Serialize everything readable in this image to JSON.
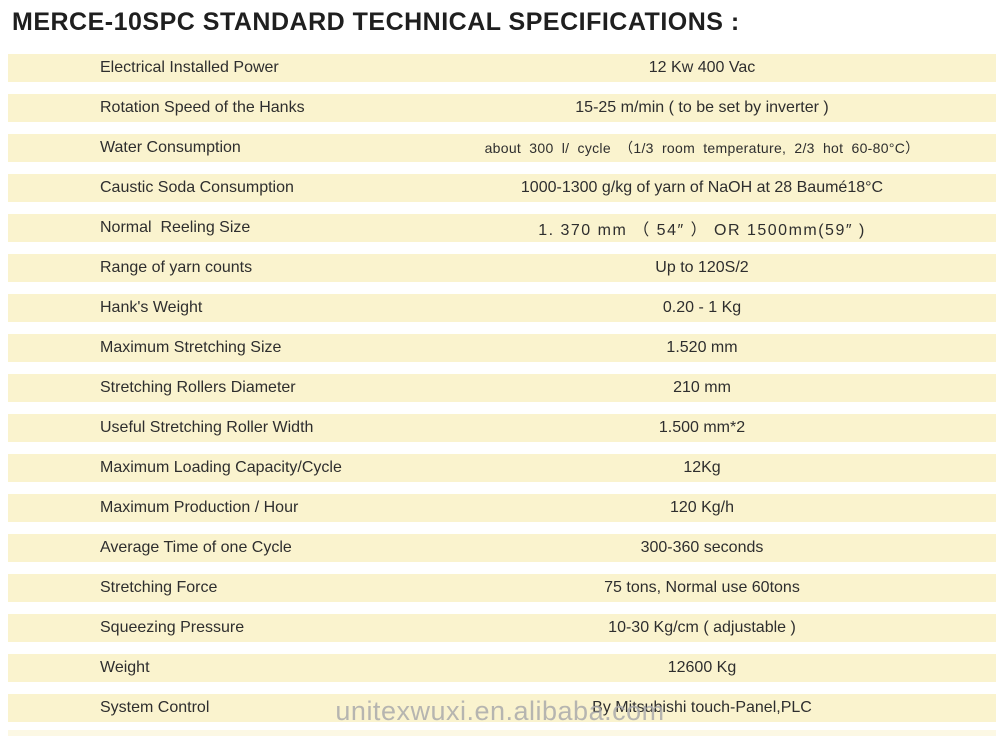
{
  "title": "MERCE-10SPC STANDARD TECHNICAL SPECIFICATIONS :",
  "watermark": "unitexwuxi.en.alibaba.com",
  "colors": {
    "row_background": "#FAF3CE",
    "text": "#2e2e2e",
    "title_text": "#1f1f1f",
    "watermark_text": "#ababab"
  },
  "table": {
    "rows": [
      {
        "label": "Electrical Installed Power",
        "value": "12 Kw 400 Vac",
        "value_class": ""
      },
      {
        "label": "Rotation Speed of the Hanks",
        "value": "15-25 m/min ( to be set by inverter )",
        "value_class": ""
      },
      {
        "label": "Water Consumption",
        "value": "about 300 l/ cycle （1/3 room temperature, 2/3 hot 60-80°C）",
        "value_class": "small"
      },
      {
        "label": "Caustic Soda Consumption",
        "value": "1000-1300 g/kg of yarn of NaOH at 28 Baumé18°C",
        "value_class": ""
      },
      {
        "label": "Normal  Reeling Size",
        "value": "1. 370 mm （ 54″ ） OR 1500mm(59″ )",
        "value_class": "spaced"
      },
      {
        "label": "Range of yarn counts",
        "value": "Up to 120S/2",
        "value_class": ""
      },
      {
        "label": "Hank's Weight",
        "value": "0.20 - 1 Kg",
        "value_class": ""
      },
      {
        "label": "Maximum Stretching Size",
        "value": "1.520 mm",
        "value_class": ""
      },
      {
        "label": "Stretching Rollers Diameter",
        "value": "210 mm",
        "value_class": ""
      },
      {
        "label": "Useful Stretching Roller Width",
        "value": "1.500 mm*2",
        "value_class": ""
      },
      {
        "label": "Maximum Loading Capacity/Cycle",
        "value": "12Kg",
        "value_class": ""
      },
      {
        "label": "Maximum Production / Hour",
        "value": "120 Kg/h",
        "value_class": ""
      },
      {
        "label": "Average Time of one Cycle",
        "value": "300-360 seconds",
        "value_class": ""
      },
      {
        "label": "Stretching Force",
        "value": "75 tons, Normal use 60tons",
        "value_class": ""
      },
      {
        "label": "Squeezing Pressure",
        "value": "10-30 Kg/cm ( adjustable )",
        "value_class": ""
      },
      {
        "label": "Weight",
        "value": "12600 Kg",
        "value_class": ""
      },
      {
        "label": "System Control",
        "value": "By Mitsubishi touch-Panel,PLC",
        "value_class": ""
      }
    ]
  }
}
